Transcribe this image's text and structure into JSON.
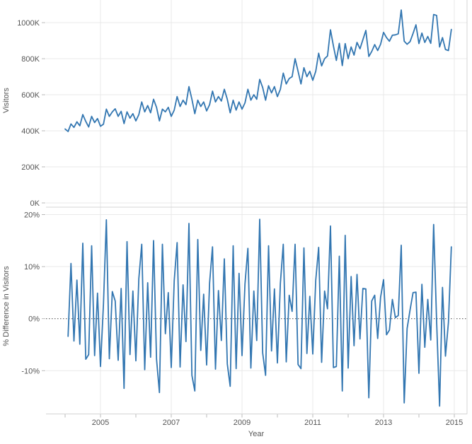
{
  "chart_data": [
    {
      "type": "line",
      "title": "",
      "ylabel": "Visitors",
      "x_unit": "month",
      "x_start": "2004-01",
      "x_end": "2014-12",
      "y_ticks": [
        "0K",
        "200K",
        "400K",
        "600K",
        "800K",
        "1000K"
      ],
      "y_tick_values": [
        0,
        200,
        400,
        600,
        800,
        1000
      ],
      "ylim": [
        0,
        1106
      ],
      "grid": true,
      "line_color": "#3276b1",
      "values": [
        410,
        396,
        438,
        419,
        450,
        428,
        490,
        452,
        421,
        480,
        446,
        468,
        425,
        437,
        520,
        480,
        505,
        522,
        480,
        508,
        440,
        505,
        470,
        495,
        455,
        490,
        560,
        505,
        540,
        500,
        575,
        530,
        455,
        520,
        505,
        530,
        480,
        515,
        590,
        535,
        570,
        545,
        645,
        575,
        495,
        570,
        535,
        560,
        510,
        545,
        620,
        560,
        590,
        565,
        630,
        575,
        500,
        570,
        515,
        560,
        520,
        555,
        630,
        570,
        600,
        575,
        685,
        640,
        570,
        650,
        610,
        645,
        590,
        630,
        720,
        660,
        690,
        700,
        800,
        730,
        660,
        750,
        700,
        730,
        680,
        730,
        830,
        760,
        800,
        815,
        960,
        870,
        790,
        885,
        762,
        884,
        800,
        865,
        820,
        890,
        855,
        905,
        957,
        812,
        840,
        878,
        845,
        880,
        946,
        917,
        897,
        930,
        932,
        938,
        1070,
        897,
        880,
        895,
        940,
        988,
        884,
        942,
        890,
        923,
        885,
        1045,
        1040,
        865,
        917,
        851,
        845,
        962
      ]
    },
    {
      "type": "line",
      "title": "",
      "ylabel": "% Difference in Visitors",
      "x_unit": "month",
      "x_start": "2004-02",
      "x_end": "2014-12",
      "y_ticks": [
        "20%",
        "10%",
        "0%",
        "-10%"
      ],
      "y_tick_values": [
        20,
        10,
        0,
        -10
      ],
      "ylim": [
        -18.3,
        21.2
      ],
      "grid": true,
      "zero_line_style": "dotted",
      "line_color": "#3276b1",
      "values": [
        -3.4,
        10.6,
        -4.3,
        7.4,
        -4.9,
        14.5,
        -7.8,
        -6.9,
        14.0,
        -7.1,
        4.9,
        -9.2,
        2.8,
        19.0,
        -7.7,
        5.2,
        3.4,
        -8.0,
        5.8,
        -13.4,
        14.8,
        -6.9,
        5.3,
        -8.1,
        7.7,
        14.3,
        -9.8,
        6.9,
        -7.4,
        15.0,
        -7.8,
        -14.2,
        14.3,
        -2.9,
        5.0,
        -9.4,
        7.3,
        14.6,
        -9.3,
        6.5,
        -4.4,
        18.3,
        -10.9,
        -13.9,
        15.2,
        -6.1,
        4.7,
        -8.9,
        6.9,
        13.8,
        -9.7,
        5.4,
        -4.2,
        11.5,
        -8.7,
        -13.0,
        14.0,
        -9.6,
        8.7,
        -7.1,
        6.7,
        13.5,
        -9.5,
        5.3,
        -4.2,
        19.1,
        -6.6,
        -10.9,
        14.0,
        -6.2,
        5.7,
        -8.5,
        6.8,
        14.3,
        -8.3,
        4.5,
        1.4,
        14.3,
        -8.8,
        -9.6,
        13.6,
        -6.7,
        4.3,
        -6.8,
        7.4,
        13.7,
        -8.4,
        5.3,
        1.9,
        17.8,
        -9.4,
        -9.2,
        12.0,
        -13.9,
        16.0,
        -9.5,
        8.1,
        -5.2,
        8.5,
        -3.9,
        5.8,
        5.7,
        -15.2,
        3.4,
        4.5,
        -3.8,
        4.1,
        7.5,
        -3.1,
        -2.2,
        3.7,
        0.2,
        0.6,
        14.1,
        -16.2,
        -1.9,
        1.7,
        5.0,
        5.1,
        -10.5,
        6.6,
        -5.5,
        3.7,
        -4.1,
        18.1,
        -0.5,
        -16.8,
        6.0,
        -7.2,
        -0.7,
        13.8
      ]
    }
  ],
  "x_axis": {
    "label": "Year",
    "tick_years": [
      2004,
      2005,
      2006,
      2007,
      2008,
      2009,
      2010,
      2011,
      2012,
      2013,
      2014,
      2015
    ],
    "gridline_years": [
      2005,
      2007,
      2009,
      2011,
      2013,
      2015
    ],
    "labeled_years": [
      "2005",
      "2007",
      "2009",
      "2011",
      "2013",
      "2015"
    ]
  },
  "colors": {
    "background": "#ffffff",
    "line": "#3276b1",
    "grid": "#e9e9e9",
    "border": "#d4d4d4",
    "tick": "#bbbbbb",
    "axis_text": "#555555",
    "zero_line": "#444444"
  }
}
